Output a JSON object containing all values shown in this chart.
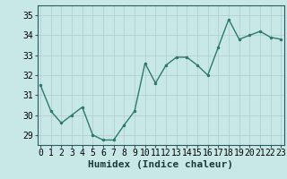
{
  "x": [
    0,
    1,
    2,
    3,
    4,
    5,
    6,
    7,
    8,
    9,
    10,
    11,
    12,
    13,
    14,
    15,
    16,
    17,
    18,
    19,
    20,
    21,
    22,
    23
  ],
  "y": [
    31.5,
    30.2,
    29.6,
    30.0,
    30.4,
    29.0,
    28.75,
    28.75,
    29.5,
    30.2,
    32.6,
    31.6,
    32.5,
    32.9,
    32.9,
    32.5,
    32.0,
    33.4,
    34.8,
    33.8,
    34.0,
    34.2,
    33.9,
    33.8
  ],
  "ylim": [
    28.5,
    35.5
  ],
  "yticks": [
    29,
    30,
    31,
    32,
    33,
    34,
    35
  ],
  "xticks": [
    0,
    1,
    2,
    3,
    4,
    5,
    6,
    7,
    8,
    9,
    10,
    11,
    12,
    13,
    14,
    15,
    16,
    17,
    18,
    19,
    20,
    21,
    22,
    23
  ],
  "xlabel": "Humidex (Indice chaleur)",
  "line_color": "#2d7a6a",
  "marker": ".",
  "bg_color": "#c8e8e8",
  "grid_color": "#b0cccc",
  "xlabel_fontsize": 8,
  "tick_fontsize": 7,
  "xlim": [
    -0.3,
    23.3
  ]
}
